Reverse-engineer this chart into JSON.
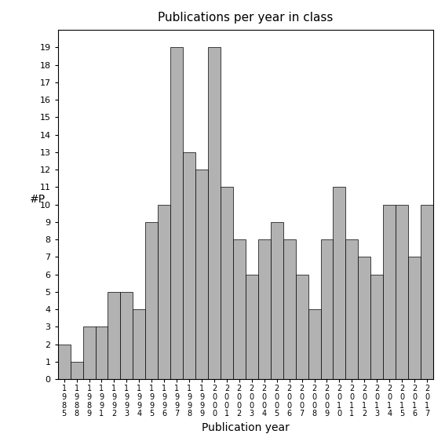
{
  "title": "Publications per year in class",
  "xlabel": "Publication year",
  "ylabel": "#P",
  "bar_color": "#b2b2b2",
  "bar_edgecolor": "#000000",
  "categories": [
    "1985",
    "1988",
    "1989",
    "1991",
    "1992",
    "1993",
    "1994",
    "1995",
    "1996",
    "1997",
    "1998",
    "1999",
    "2000",
    "2001",
    "2002",
    "2003",
    "2004",
    "2005",
    "2006",
    "2007",
    "2008",
    "2009",
    "2010",
    "2011",
    "2012",
    "2013",
    "2014",
    "2015",
    "2016",
    "2017"
  ],
  "values": [
    2,
    1,
    3,
    3,
    5,
    5,
    4,
    9,
    10,
    19,
    13,
    12,
    19,
    11,
    8,
    6,
    8,
    9,
    8,
    6,
    4,
    8,
    11,
    8,
    7,
    6,
    10,
    10,
    7,
    10
  ],
  "ylim": [
    0,
    20
  ],
  "yticks": [
    0,
    1,
    2,
    3,
    4,
    5,
    6,
    7,
    8,
    9,
    10,
    11,
    12,
    13,
    14,
    15,
    16,
    17,
    18,
    19
  ],
  "figsize": [
    5.67,
    5.67
  ],
  "dpi": 100
}
